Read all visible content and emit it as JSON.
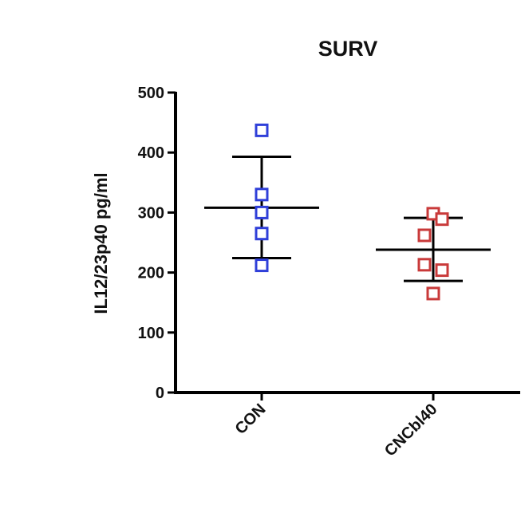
{
  "chart_data": {
    "type": "scatter",
    "title": "SURV",
    "xlabel": "",
    "ylabel": "IL12/23p40 pg/ml",
    "ylim": [
      0,
      500
    ],
    "yticks": [
      0,
      100,
      200,
      300,
      400,
      500
    ],
    "ytick_labels": [
      "0",
      "100",
      "200",
      "300",
      "400",
      "500"
    ],
    "categories": [
      "CON",
      "CNCbl40"
    ],
    "grid": false,
    "legend": "none",
    "groups": [
      {
        "category": "CON",
        "color": "#2f3fd9",
        "marker": "open-square",
        "points": [
          {
            "offset": 0,
            "y": 437
          },
          {
            "offset": 0,
            "y": 330
          },
          {
            "offset": 0,
            "y": 300
          },
          {
            "offset": 0,
            "y": 265
          },
          {
            "offset": 0,
            "y": 212
          }
        ],
        "mean": 308,
        "sd_upper": 393,
        "sd_lower": 224
      },
      {
        "category": "CNCbl40",
        "color": "#c93a3a",
        "marker": "open-square",
        "points": [
          {
            "offset": 0,
            "y": 298
          },
          {
            "offset": 1,
            "y": 289
          },
          {
            "offset": -1,
            "y": 262
          },
          {
            "offset": -1,
            "y": 213
          },
          {
            "offset": 1,
            "y": 204
          },
          {
            "offset": 0,
            "y": 165
          }
        ],
        "mean": 238,
        "sd_upper": 291,
        "sd_lower": 186
      }
    ]
  }
}
